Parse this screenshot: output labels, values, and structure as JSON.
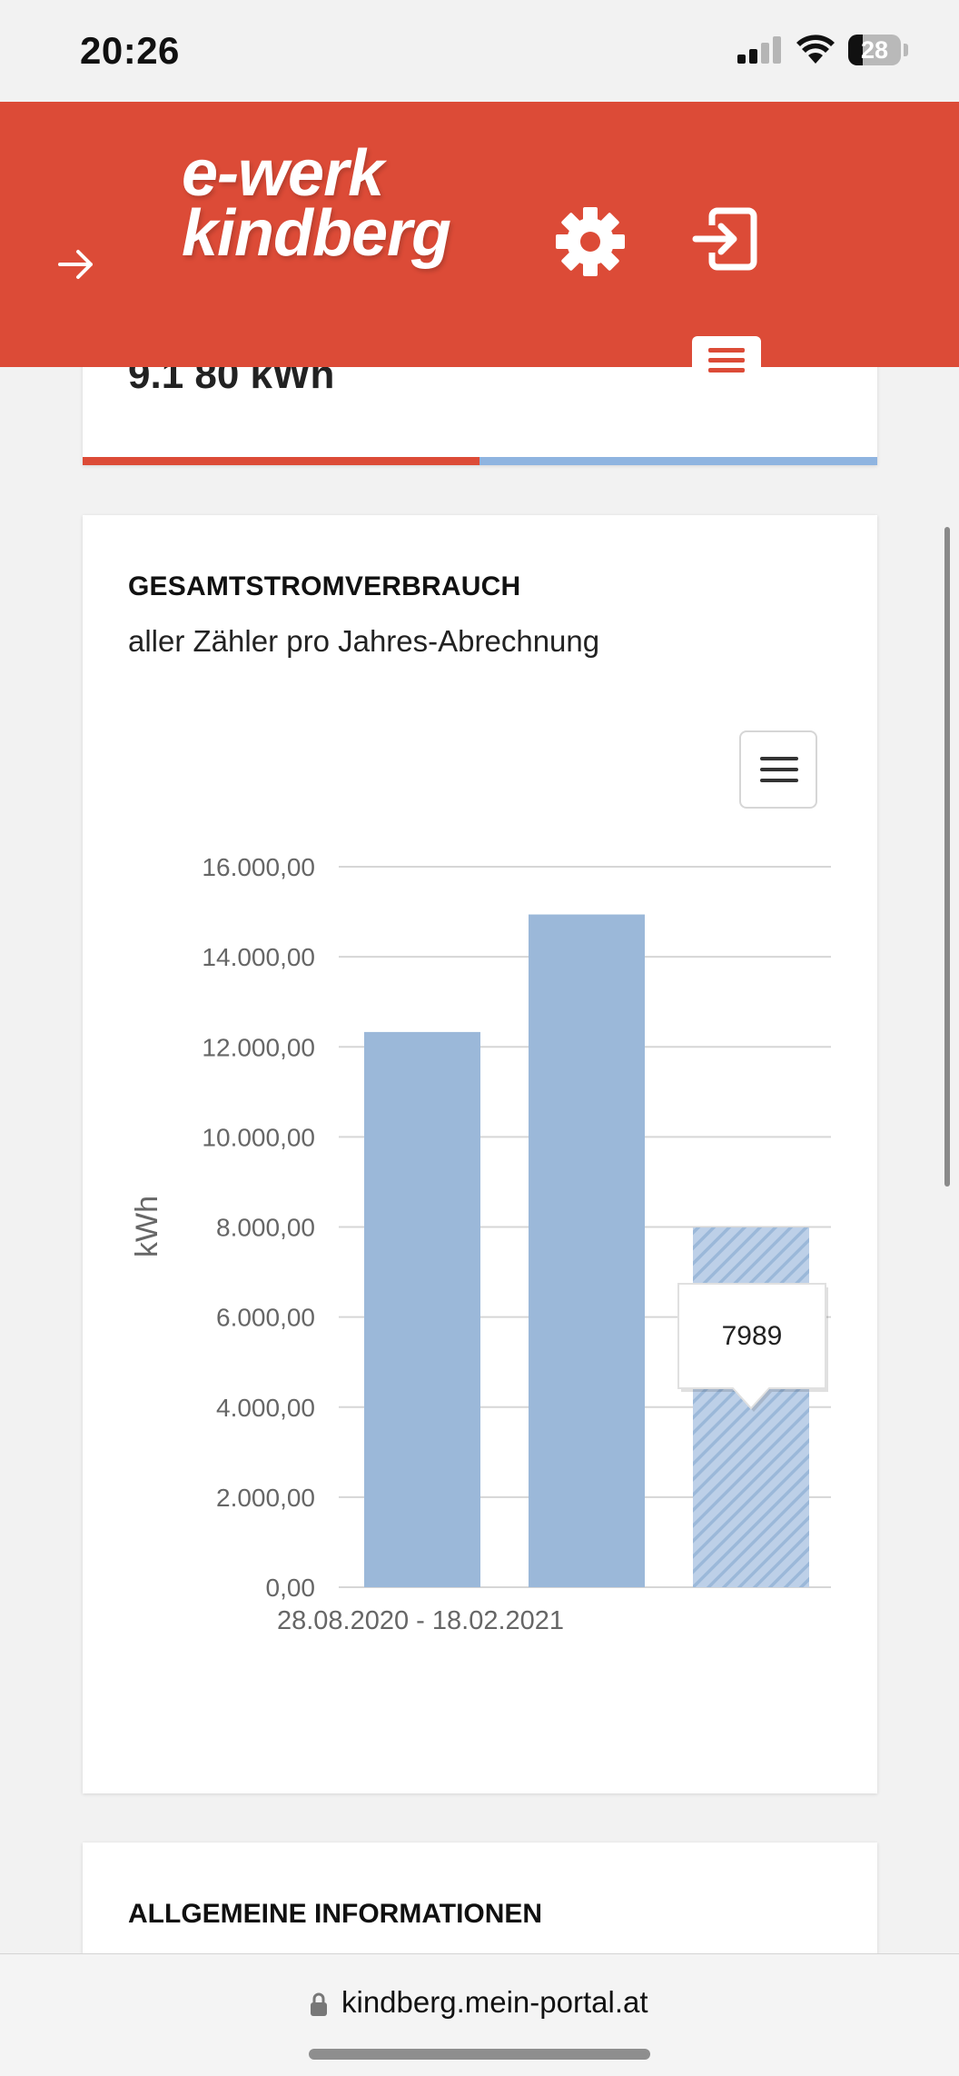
{
  "status_bar": {
    "time": "20:26",
    "battery": "28"
  },
  "header": {
    "brand_line1": "e-werk",
    "brand_line2": "kindberg",
    "accent_color": "#dc4b37",
    "icons": [
      "arrow-right-icon",
      "gear-icon",
      "logout-icon",
      "hamburger-icon"
    ]
  },
  "top_card": {
    "partial_text": "9.1 80 kWh"
  },
  "chart_card": {
    "title": "GESAMTSTROMVERBRAUCH",
    "subtitle": "aller Zähler pro Jahres-Abrechnung",
    "menu_icon": "hamburger-icon",
    "tooltip_value": "7989"
  },
  "chart_data": {
    "type": "bar",
    "categories": [
      "28.08.2020 - 18.02.2021",
      "",
      ""
    ],
    "values": [
      12330,
      14940,
      7989
    ],
    "ylabel": "kWh",
    "ylim": [
      0,
      16000
    ],
    "yticks": [
      "0,00",
      "2.000,00",
      "4.000,00",
      "6.000,00",
      "8.000,00",
      "10.000,00",
      "12.000,00",
      "14.000,00",
      "16.000,00"
    ],
    "ytick_values": [
      0,
      2000,
      4000,
      6000,
      8000,
      10000,
      12000,
      14000,
      16000
    ],
    "xtick_label": "28.08.2020 - 18.02.2021",
    "bar_color": "#9bb8d9",
    "last_bar_hatched": true,
    "grid": true
  },
  "info_card": {
    "title": "ALLGEMEINE INFORMATIONEN"
  },
  "browser": {
    "url": "kindberg.mein-portal.at"
  }
}
